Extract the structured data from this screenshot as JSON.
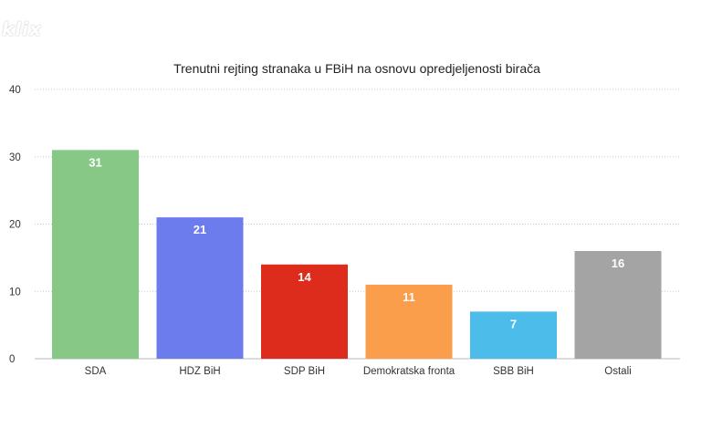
{
  "logo_text": "klix",
  "chart_data": {
    "type": "bar",
    "title": "Trenutni rejting stranaka u FBiH na osnovu opredjeljenosti birača",
    "xlabel": "",
    "ylabel": "",
    "categories": [
      "SDA",
      "HDZ BiH",
      "SDP BiH",
      "Demokratska fronta",
      "SBB BiH",
      "Ostali"
    ],
    "values": [
      31,
      21,
      14,
      11,
      7,
      16
    ],
    "colors": [
      "#88c887",
      "#6c7ced",
      "#de2c1c",
      "#fa9e4b",
      "#4cbcea",
      "#a4a4a4"
    ],
    "ylim": [
      0,
      40
    ],
    "yticks": [
      0,
      10,
      20,
      30,
      40
    ],
    "grid": true,
    "legend": "none"
  }
}
